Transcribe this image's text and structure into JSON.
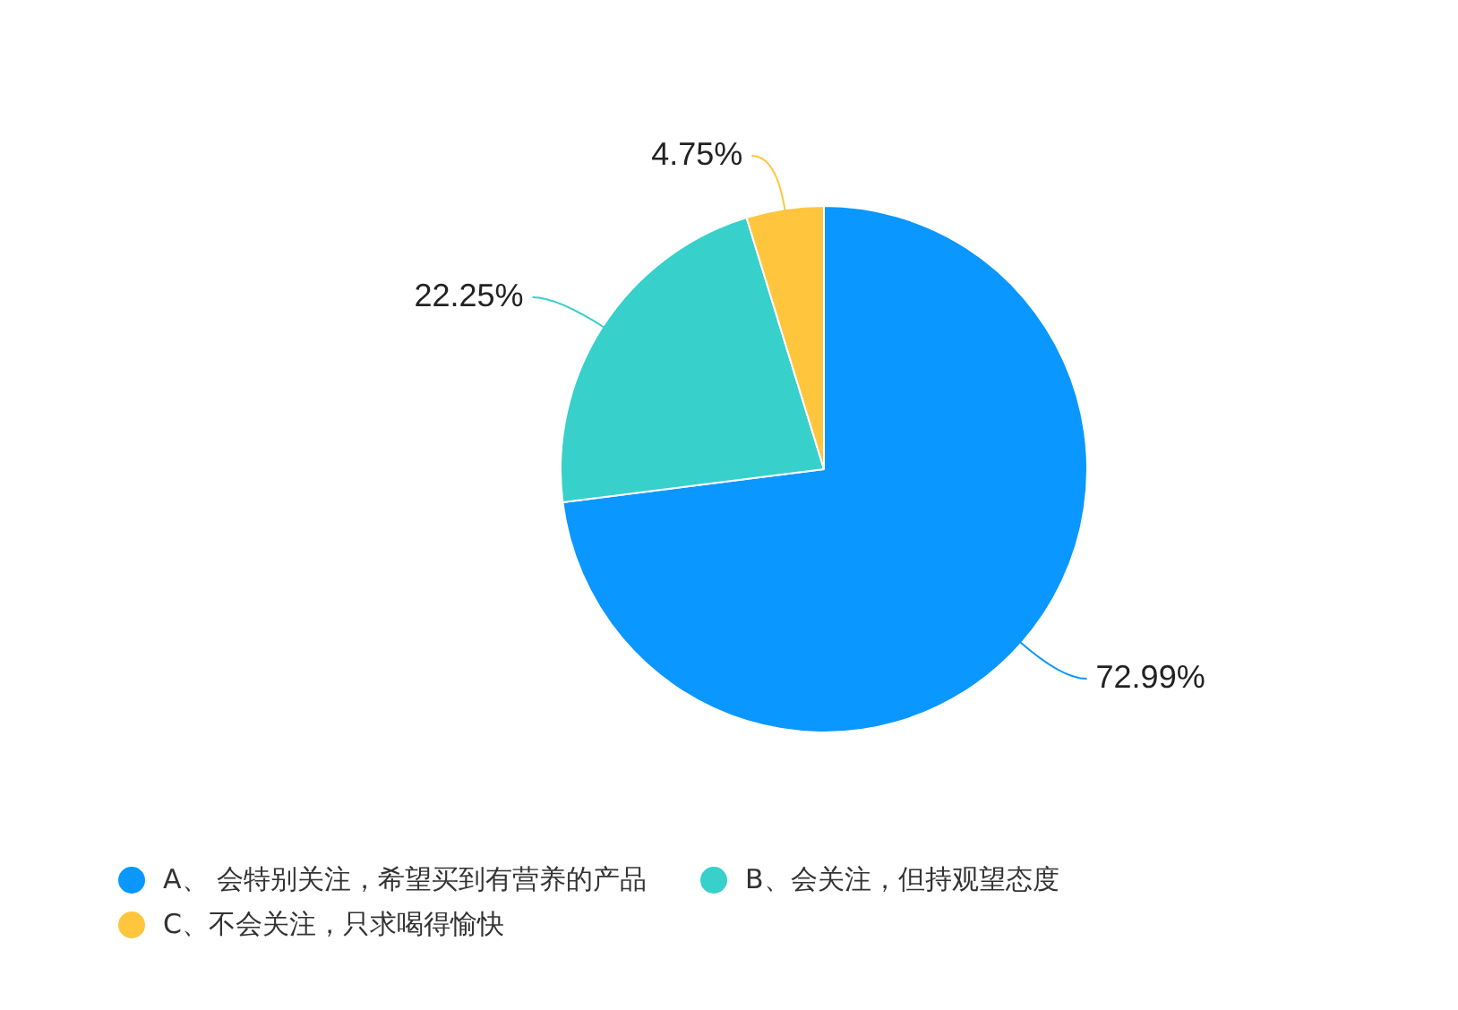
{
  "chart_data": {
    "type": "pie",
    "categories": [
      "A、 会特别关注，希望买到有营养的产品",
      "B、会关注，但持观望态度",
      "C、不会关注，只求喝得愉快"
    ],
    "values": [
      72.99,
      22.25,
      4.75
    ],
    "value_labels": [
      "72.99%",
      "22.25%",
      "4.75%"
    ],
    "colors": [
      "#0a97ff",
      "#37d0cb",
      "#ffc53d"
    ],
    "legend": "bottom"
  }
}
